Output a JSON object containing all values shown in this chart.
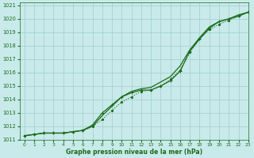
{
  "title": "Graphe pression niveau de la mer (hPa)",
  "bg_color": "#c8eaea",
  "grid_color": "#a8d0d0",
  "line_color": "#1a6b1a",
  "xlim": [
    -0.5,
    23
  ],
  "ylim": [
    1011,
    1021.2
  ],
  "yticks": [
    1011,
    1012,
    1013,
    1014,
    1015,
    1016,
    1017,
    1018,
    1019,
    1020,
    1021
  ],
  "xticks": [
    0,
    1,
    2,
    3,
    4,
    5,
    6,
    7,
    8,
    9,
    10,
    11,
    12,
    13,
    14,
    15,
    16,
    17,
    18,
    19,
    20,
    21,
    22,
    23
  ],
  "line1_x": [
    0,
    1,
    2,
    3,
    4,
    5,
    6,
    7,
    8,
    9,
    10,
    11,
    12,
    13,
    14,
    15,
    16,
    17,
    18,
    19,
    20,
    21,
    22,
    23
  ],
  "line1_y": [
    1011.3,
    1011.4,
    1011.5,
    1011.5,
    1011.5,
    1011.6,
    1011.7,
    1012.0,
    1012.5,
    1013.2,
    1013.8,
    1014.2,
    1014.6,
    1014.7,
    1015.0,
    1015.5,
    1016.2,
    1017.5,
    1018.5,
    1019.2,
    1019.6,
    1019.9,
    1020.2,
    1020.5
  ],
  "line2_x": [
    0,
    1,
    2,
    3,
    4,
    5,
    6,
    7,
    8,
    9,
    10,
    11,
    12,
    13,
    14,
    15,
    16,
    17,
    18,
    19,
    20,
    21,
    22,
    23
  ],
  "line2_y": [
    1011.3,
    1011.4,
    1011.5,
    1011.5,
    1011.5,
    1011.6,
    1011.7,
    1012.0,
    1012.8,
    1013.5,
    1014.2,
    1014.6,
    1014.8,
    1014.9,
    1015.3,
    1015.7,
    1016.5,
    1017.7,
    1018.6,
    1019.4,
    1019.8,
    1020.0,
    1020.3,
    1020.5
  ],
  "line3_x": [
    0,
    1,
    2,
    3,
    4,
    5,
    6,
    7,
    8,
    9,
    10,
    11,
    12,
    13,
    14,
    15,
    16,
    17,
    18,
    19,
    20,
    21,
    22,
    23
  ],
  "line3_y": [
    1011.3,
    1011.4,
    1011.5,
    1011.5,
    1011.5,
    1011.6,
    1011.7,
    1012.1,
    1013.0,
    1013.6,
    1014.2,
    1014.5,
    1014.7,
    1014.7,
    1015.0,
    1015.4,
    1016.1,
    1017.6,
    1018.5,
    1019.3,
    1019.8,
    1020.0,
    1020.2,
    1020.5
  ]
}
